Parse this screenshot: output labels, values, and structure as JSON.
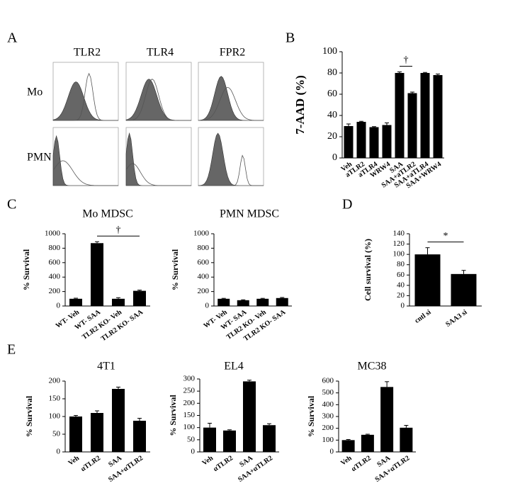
{
  "panel_labels": [
    "A",
    "B",
    "C",
    "D",
    "E"
  ],
  "flow_cytometry": {
    "markers": [
      "TLR2",
      "TLR4",
      "FPR2"
    ],
    "cell_types": [
      "Mo",
      "PMN"
    ]
  },
  "chart_data": [
    {
      "type": "bar",
      "ylabel": "7-AAD (%)",
      "categories": [
        "Veh",
        "aTLR2",
        "aTLR4",
        "WRW4",
        "SAA",
        "SAA+aTLR2",
        "SAA+aTLR4",
        "SAA+WRW4"
      ],
      "values": [
        30,
        34,
        29,
        31,
        80,
        61,
        80,
        78
      ],
      "errors": [
        2,
        0.5,
        0.5,
        2,
        1,
        1,
        0.5,
        1
      ],
      "ylim": [
        0,
        100
      ],
      "yticks": [
        0,
        20,
        40,
        60,
        80,
        100
      ],
      "color": "#000000",
      "significance": {
        "label": "†",
        "between": [
          "SAA",
          "SAA+aTLR2"
        ]
      }
    },
    {
      "type": "bar",
      "title": "Mo MDSC",
      "ylabel": "% Survival",
      "categories": [
        "WT- Veh",
        "WT- SAA",
        "TLR2 KO- Veh",
        "TLR2 KO- SAA"
      ],
      "values": [
        100,
        870,
        100,
        210
      ],
      "errors": [
        8,
        20,
        15,
        10
      ],
      "ylim": [
        0,
        1000
      ],
      "yticks": [
        0,
        200,
        400,
        600,
        800,
        1000
      ],
      "color": "#000000",
      "significance": {
        "label": "†",
        "between": [
          "WT- SAA",
          "TLR2 KO- SAA"
        ]
      }
    },
    {
      "type": "bar",
      "title": "PMN MDSC",
      "ylabel": "% Survival",
      "categories": [
        "WT- Veh",
        "WT- SAA",
        "TLR2 KO- Veh",
        "TLR2 KO- SAA"
      ],
      "values": [
        100,
        80,
        100,
        110
      ],
      "errors": [
        6,
        6,
        6,
        8
      ],
      "ylim": [
        0,
        1000
      ],
      "yticks": [
        0,
        200,
        400,
        600,
        800,
        1000
      ],
      "color": "#000000"
    },
    {
      "type": "bar",
      "ylabel": "Cell survival (%)",
      "categories": [
        "cntl si",
        "SAA3 si"
      ],
      "values": [
        100,
        62
      ],
      "errors": [
        13,
        7
      ],
      "ylim": [
        0,
        140
      ],
      "yticks": [
        0,
        20,
        40,
        60,
        80,
        100,
        120,
        140
      ],
      "color": "#000000",
      "significance": {
        "label": "*",
        "between": [
          "cntl si",
          "SAA3 si"
        ]
      }
    },
    {
      "type": "bar",
      "title": "4T1",
      "ylabel": "% Survival",
      "categories": [
        "Veh",
        "αTLR2",
        "SAA",
        "SAA+αTLR2"
      ],
      "values": [
        100,
        110,
        178,
        88
      ],
      "errors": [
        3,
        6,
        5,
        7
      ],
      "ylim": [
        0,
        200
      ],
      "yticks": [
        0,
        50,
        100,
        150,
        200
      ],
      "color": "#000000"
    },
    {
      "type": "bar",
      "title": "EL4",
      "ylabel": "% Survival",
      "categories": [
        "Veh",
        "αTLR2",
        "SAA",
        "SAA+αTLR2"
      ],
      "values": [
        100,
        88,
        290,
        110
      ],
      "errors": [
        18,
        3,
        5,
        6
      ],
      "ylim": [
        0,
        300
      ],
      "yticks": [
        0,
        50,
        100,
        150,
        200,
        250,
        300
      ],
      "color": "#000000"
    },
    {
      "type": "bar",
      "title": "MC38",
      "ylabel": "% Survival",
      "categories": [
        "Veh",
        "αTLR2",
        "SAA",
        "SAA+αTLR2"
      ],
      "values": [
        100,
        145,
        550,
        205
      ],
      "errors": [
        5,
        5,
        45,
        20
      ],
      "ylim": [
        0,
        600
      ],
      "yticks": [
        0,
        100,
        200,
        300,
        400,
        500,
        600
      ],
      "color": "#000000"
    }
  ]
}
